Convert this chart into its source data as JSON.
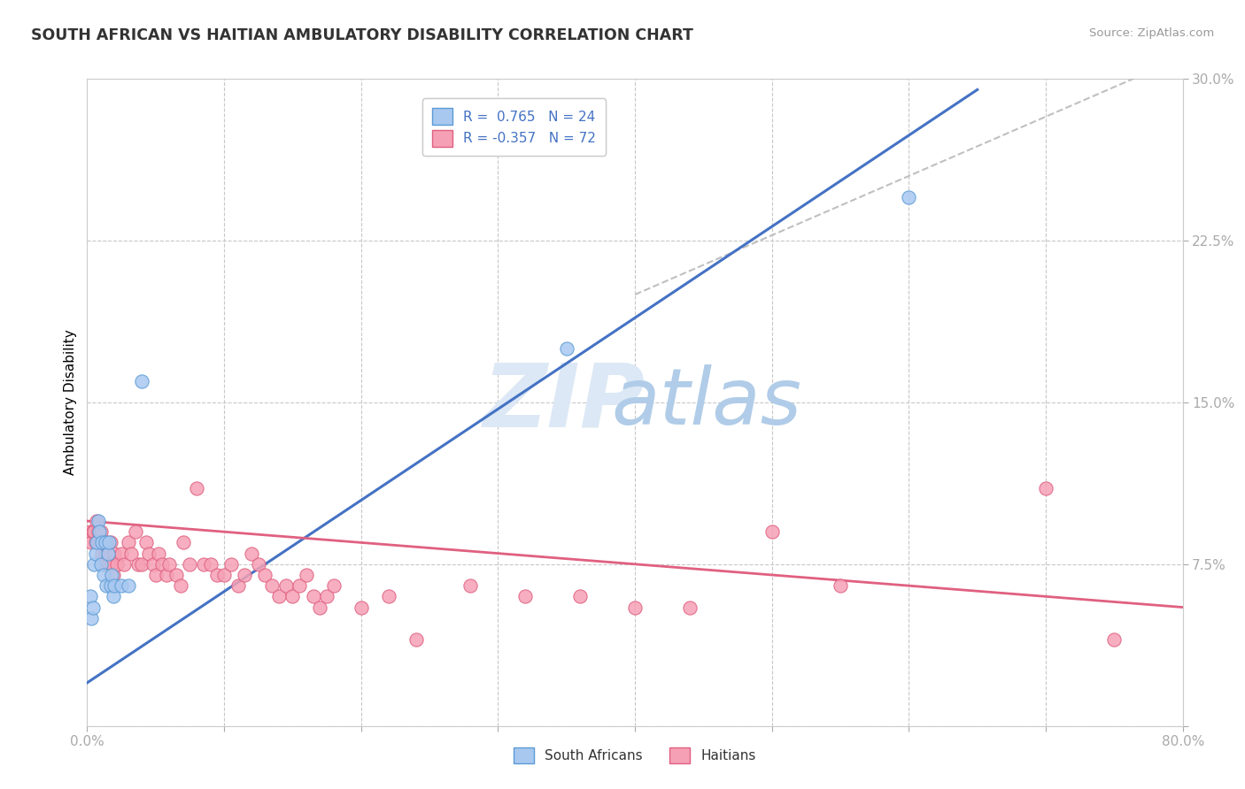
{
  "title": "SOUTH AFRICAN VS HAITIAN AMBULATORY DISABILITY CORRELATION CHART",
  "source": "Source: ZipAtlas.com",
  "ylabel": "Ambulatory Disability",
  "xlim": [
    0.0,
    0.8
  ],
  "ylim": [
    0.0,
    0.3
  ],
  "xticks": [
    0.0,
    0.1,
    0.2,
    0.3,
    0.4,
    0.5,
    0.6,
    0.7,
    0.8
  ],
  "yticks": [
    0.0,
    0.075,
    0.15,
    0.225,
    0.3
  ],
  "xticklabels": [
    "0.0%",
    "",
    "",
    "",
    "",
    "",
    "",
    "",
    "80.0%"
  ],
  "yticklabels": [
    "",
    "7.5%",
    "15.0%",
    "22.5%",
    "30.0%"
  ],
  "sa_color": "#a8c8f0",
  "haitian_color": "#f5a0b5",
  "sa_edge_color": "#5b9bd5",
  "haitian_edge_color": "#e06080",
  "sa_line_color": "#4472c4",
  "haitian_line_color": "#e06080",
  "gray_dash_color": "#c0c0c0",
  "grid_color": "#c8c8c8",
  "tick_color": "#5b9bd5",
  "title_color": "#333333",
  "source_color": "#999999",
  "legend_text_color": "#4472c4",
  "bottom_legend_color": "#333333",
  "watermark_zip_color": "#dce8f5",
  "watermark_atlas_color": "#b0cce8",
  "sa_trend_line": [
    0.0,
    0.02,
    0.65,
    0.295
  ],
  "haitian_trend_line": [
    0.0,
    0.095,
    0.8,
    0.055
  ],
  "gray_dash_line": [
    0.4,
    0.2,
    0.8,
    0.31
  ],
  "south_africans": [
    [
      0.002,
      0.06
    ],
    [
      0.003,
      0.05
    ],
    [
      0.004,
      0.055
    ],
    [
      0.005,
      0.075
    ],
    [
      0.006,
      0.08
    ],
    [
      0.007,
      0.085
    ],
    [
      0.008,
      0.095
    ],
    [
      0.009,
      0.09
    ],
    [
      0.01,
      0.075
    ],
    [
      0.011,
      0.085
    ],
    [
      0.012,
      0.07
    ],
    [
      0.013,
      0.085
    ],
    [
      0.014,
      0.065
    ],
    [
      0.015,
      0.08
    ],
    [
      0.016,
      0.085
    ],
    [
      0.017,
      0.065
    ],
    [
      0.018,
      0.07
    ],
    [
      0.019,
      0.06
    ],
    [
      0.02,
      0.065
    ],
    [
      0.025,
      0.065
    ],
    [
      0.03,
      0.065
    ],
    [
      0.04,
      0.16
    ],
    [
      0.35,
      0.175
    ],
    [
      0.6,
      0.245
    ]
  ],
  "haitians": [
    [
      0.002,
      0.09
    ],
    [
      0.003,
      0.085
    ],
    [
      0.004,
      0.09
    ],
    [
      0.005,
      0.09
    ],
    [
      0.006,
      0.085
    ],
    [
      0.007,
      0.095
    ],
    [
      0.008,
      0.09
    ],
    [
      0.009,
      0.085
    ],
    [
      0.01,
      0.09
    ],
    [
      0.011,
      0.08
    ],
    [
      0.012,
      0.075
    ],
    [
      0.013,
      0.08
    ],
    [
      0.014,
      0.085
    ],
    [
      0.015,
      0.08
    ],
    [
      0.016,
      0.075
    ],
    [
      0.017,
      0.085
    ],
    [
      0.018,
      0.075
    ],
    [
      0.019,
      0.07
    ],
    [
      0.02,
      0.08
    ],
    [
      0.022,
      0.075
    ],
    [
      0.025,
      0.08
    ],
    [
      0.027,
      0.075
    ],
    [
      0.03,
      0.085
    ],
    [
      0.032,
      0.08
    ],
    [
      0.035,
      0.09
    ],
    [
      0.037,
      0.075
    ],
    [
      0.04,
      0.075
    ],
    [
      0.043,
      0.085
    ],
    [
      0.045,
      0.08
    ],
    [
      0.048,
      0.075
    ],
    [
      0.05,
      0.07
    ],
    [
      0.052,
      0.08
    ],
    [
      0.055,
      0.075
    ],
    [
      0.058,
      0.07
    ],
    [
      0.06,
      0.075
    ],
    [
      0.065,
      0.07
    ],
    [
      0.068,
      0.065
    ],
    [
      0.07,
      0.085
    ],
    [
      0.075,
      0.075
    ],
    [
      0.08,
      0.11
    ],
    [
      0.085,
      0.075
    ],
    [
      0.09,
      0.075
    ],
    [
      0.095,
      0.07
    ],
    [
      0.1,
      0.07
    ],
    [
      0.105,
      0.075
    ],
    [
      0.11,
      0.065
    ],
    [
      0.115,
      0.07
    ],
    [
      0.12,
      0.08
    ],
    [
      0.125,
      0.075
    ],
    [
      0.13,
      0.07
    ],
    [
      0.135,
      0.065
    ],
    [
      0.14,
      0.06
    ],
    [
      0.145,
      0.065
    ],
    [
      0.15,
      0.06
    ],
    [
      0.155,
      0.065
    ],
    [
      0.16,
      0.07
    ],
    [
      0.165,
      0.06
    ],
    [
      0.17,
      0.055
    ],
    [
      0.175,
      0.06
    ],
    [
      0.18,
      0.065
    ],
    [
      0.2,
      0.055
    ],
    [
      0.22,
      0.06
    ],
    [
      0.24,
      0.04
    ],
    [
      0.28,
      0.065
    ],
    [
      0.32,
      0.06
    ],
    [
      0.36,
      0.06
    ],
    [
      0.4,
      0.055
    ],
    [
      0.44,
      0.055
    ],
    [
      0.5,
      0.09
    ],
    [
      0.55,
      0.065
    ],
    [
      0.7,
      0.11
    ],
    [
      0.75,
      0.04
    ]
  ]
}
